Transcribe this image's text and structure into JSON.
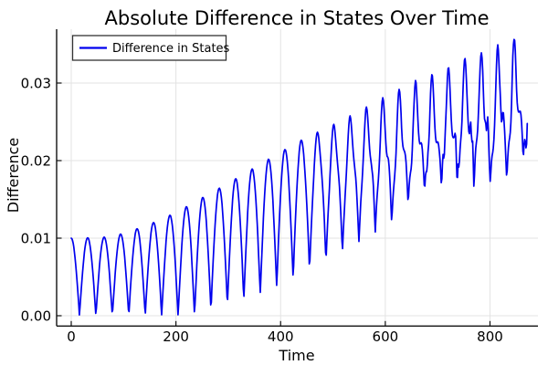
{
  "title": "Absolute Difference in States Over Time",
  "legend": {
    "items": [
      {
        "label": "Difference in States",
        "color": "#0000ee"
      }
    ]
  },
  "axes": {
    "x": {
      "label": "Time",
      "ticks": [
        0,
        200,
        400,
        600,
        800
      ],
      "tick_labels": [
        "0",
        "200",
        "400",
        "600",
        "800"
      ]
    },
    "y": {
      "label": "Difference",
      "ticks": [
        0.0,
        0.01,
        0.02,
        0.03
      ],
      "tick_labels": [
        "0.00",
        "0.01",
        "0.02",
        "0.03"
      ]
    }
  },
  "colors": {
    "line": "#0000ee",
    "grid": "#e3e3e3",
    "axis": "#111111",
    "legend_border": "#333333",
    "text": "#000000",
    "background": "#ffffff"
  },
  "chart_data": {
    "type": "line",
    "title": "Absolute Difference in States Over Time",
    "xlabel": "Time",
    "ylabel": "Difference",
    "xlim": [
      -28,
      892
    ],
    "ylim": [
      -0.0013,
      0.0369
    ],
    "grid": true,
    "legend_position": "top-left",
    "series": [
      {
        "name": "Difference in States",
        "color": "#0000ee",
        "description": "Absolute difference between two simulated states: rectified oscillation |cos| with period ~31 time units whose peak envelope grows from 0.010 at t=0 to ~0.036 at t=848; troughs touch 0 until t~230 then lift toward ~0.017; waveform grows jagged (harmonic notches + chaotic jitter) after t~450; trace ends near 0.026 at t=872.",
        "generator": {
          "t_end": 872,
          "dt": 1.2,
          "half_period": 31.4,
          "env_points": [
            [
              0,
              0.01
            ],
            [
              60,
              0.0101
            ],
            [
              100,
              0.0106
            ],
            [
              150,
              0.0118
            ],
            [
              200,
              0.0133
            ],
            [
              250,
              0.0152
            ],
            [
              300,
              0.0171
            ],
            [
              350,
              0.0191
            ],
            [
              400,
              0.0211
            ],
            [
              450,
              0.0231
            ],
            [
              500,
              0.0248
            ],
            [
              550,
              0.0266
            ],
            [
              600,
              0.0285
            ],
            [
              650,
              0.0303
            ],
            [
              700,
              0.0318
            ],
            [
              750,
              0.0333
            ],
            [
              800,
              0.0345
            ],
            [
              848,
              0.0362
            ],
            [
              875,
              0.0345
            ]
          ],
          "floor_t0": 230,
          "floor_span": 900,
          "floor_cap": 0.52,
          "harm_t0": 430,
          "harm_span": 520,
          "harm_cap": 0.5,
          "harm_phase": 0.4,
          "jit_t0": 520,
          "jit_span": 350,
          "jit_amp": 0.05
        },
        "upper_envelope_samples": [
          [
            30,
            0.01
          ],
          [
            120,
            0.011
          ],
          [
            180,
            0.0127
          ],
          [
            310,
            0.018
          ],
          [
            400,
            0.0211
          ],
          [
            530,
            0.0258
          ],
          [
            630,
            0.0295
          ],
          [
            690,
            0.0316
          ],
          [
            750,
            0.0333
          ],
          [
            790,
            0.0341
          ],
          [
            848,
            0.0362
          ]
        ],
        "lower_envelope_samples": [
          [
            15,
            0.0
          ],
          [
            200,
            0.0003
          ],
          [
            290,
            0.0015
          ],
          [
            350,
            0.0032
          ],
          [
            413,
            0.0052
          ],
          [
            475,
            0.0071
          ],
          [
            537,
            0.0091
          ],
          [
            610,
            0.0112
          ],
          [
            742,
            0.0165
          ],
          [
            801,
            0.0186
          ],
          [
            836,
            0.0184
          ]
        ]
      }
    ]
  }
}
